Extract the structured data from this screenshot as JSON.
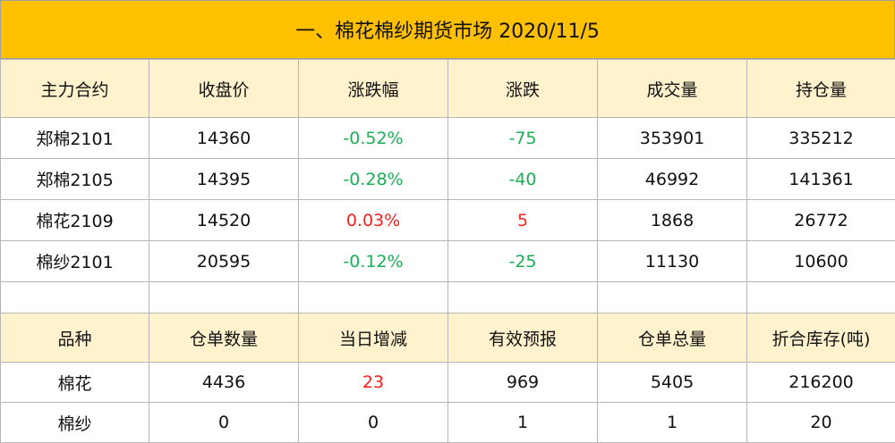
{
  "title": "一、棉花棉纱期货市场 2020/11/5",
  "futures": {
    "headers": [
      "主力合约",
      "收盘价",
      "涨跌幅",
      "涨跌",
      "成交量",
      "持仓量"
    ],
    "rows": [
      {
        "contract": "郑棉2101",
        "close": "14360",
        "pct": "-0.52%",
        "change": "-75",
        "volume": "353901",
        "oi": "335212"
      },
      {
        "contract": "郑棉2105",
        "close": "14395",
        "pct": "-0.28%",
        "change": "-40",
        "volume": "46992",
        "oi": "141361"
      },
      {
        "contract": "棉花2109",
        "close": "14520",
        "pct": "0.03%",
        "change": "5",
        "volume": "1868",
        "oi": "26772"
      },
      {
        "contract": "棉纱2101",
        "close": "20595",
        "pct": "-0.12%",
        "change": "-25",
        "volume": "11130",
        "oi": "10600"
      }
    ]
  },
  "warehouse": {
    "headers": [
      "品种",
      "仓单数量",
      "当日增减",
      "有效预报",
      "仓单总量",
      "折合库存(吨)"
    ],
    "rows": [
      {
        "variety": "棉花",
        "receipts": "4436",
        "daily_change": "23",
        "forecast": "969",
        "total": "5405",
        "inventory": "216200"
      },
      {
        "variety": "棉纱",
        "receipts": "0",
        "daily_change": "0",
        "forecast": "1",
        "total": "1",
        "inventory": "20"
      }
    ]
  },
  "colors": {
    "title_bg": "#FFC000",
    "header_bg": "#FFF2CC",
    "down": "#1AAF54",
    "up": "#FF1E1E"
  }
}
